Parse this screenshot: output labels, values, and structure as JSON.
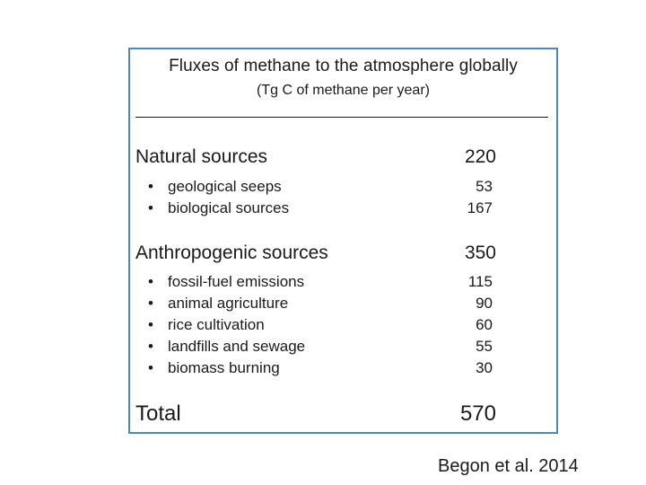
{
  "title": "Fluxes of methane to the atmosphere globally",
  "subtitle": "(Tg  C of methane per year)",
  "natural": {
    "label": "Natural sources",
    "value": "220",
    "items": [
      {
        "label": "geological seeps",
        "value": "53"
      },
      {
        "label": "biological sources",
        "value": "167"
      }
    ]
  },
  "anthropogenic": {
    "label": "Anthropogenic sources",
    "value": "350",
    "items": [
      {
        "label": "fossil-fuel emissions",
        "value": "115"
      },
      {
        "label": "animal agriculture",
        "value": "90"
      },
      {
        "label": "rice cultivation",
        "value": "60"
      },
      {
        "label": "landfills and sewage",
        "value": "55"
      },
      {
        "label": "biomass burning",
        "value": "30"
      }
    ]
  },
  "total": {
    "label": "Total",
    "value": "570"
  },
  "citation": "Begon et al. 2014",
  "colors": {
    "border": "#4a86c8",
    "text": "#1a1a1a"
  }
}
